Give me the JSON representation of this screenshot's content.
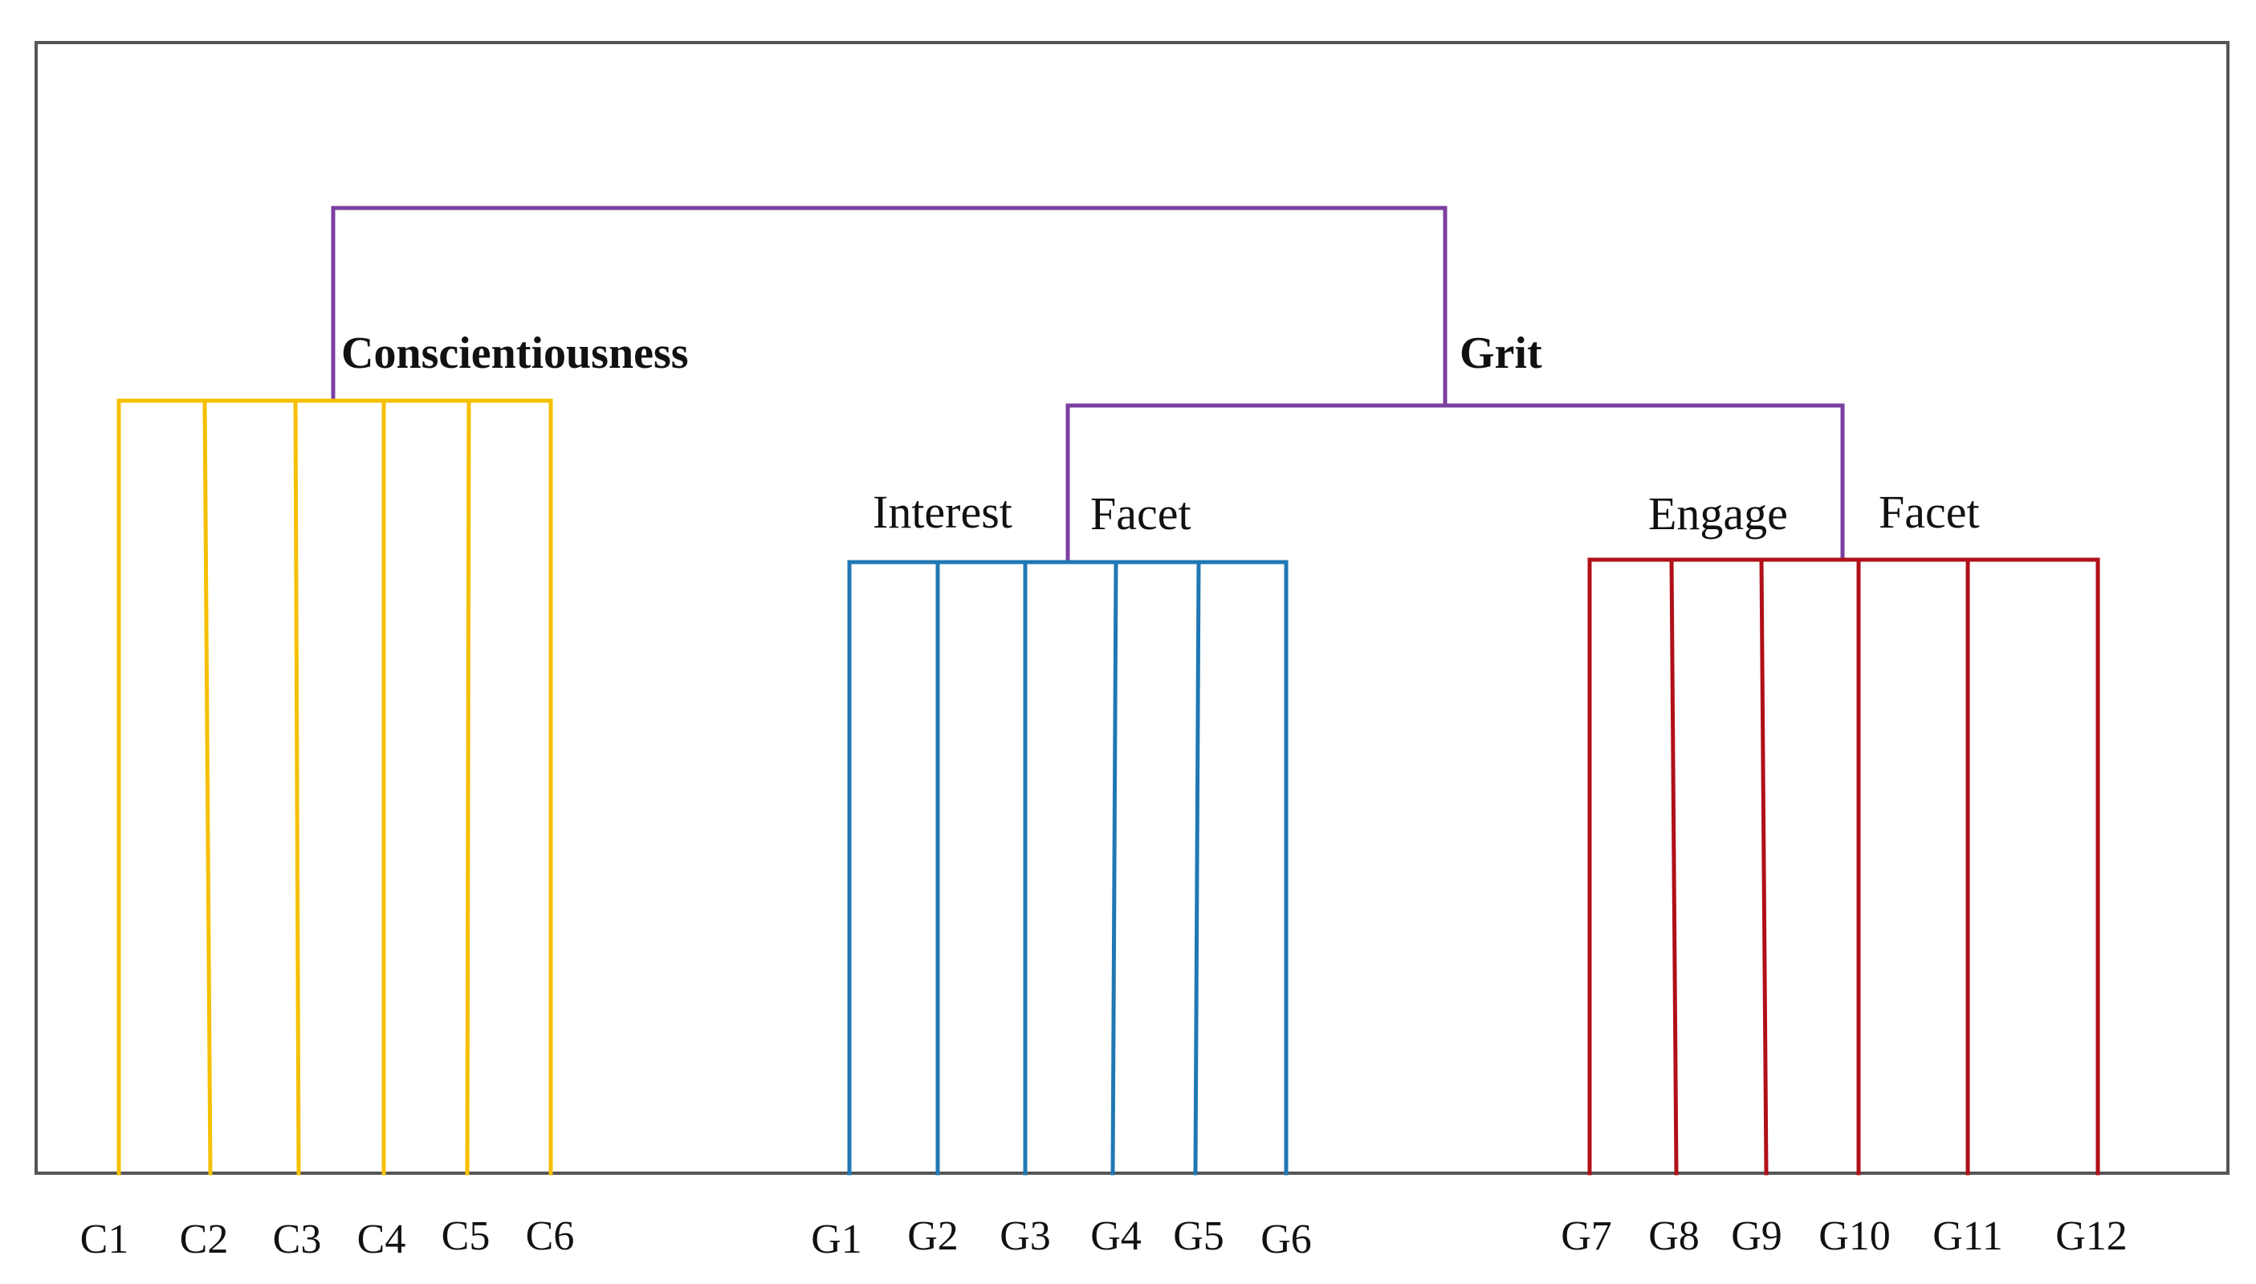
{
  "colors": {
    "conscientiousness": "#f5c000",
    "interest": "#1f78b4",
    "engage": "#b01018",
    "top": "#7b3fa0",
    "frame": "#555555"
  },
  "labels": {
    "conscientiousness": "Conscientiousness",
    "grit": "Grit",
    "interest": "Interest",
    "interest_facet": "Facet",
    "engage": "Engage",
    "engage_facet": "Facet"
  },
  "clusters": {
    "conscientiousness": {
      "items": [
        "C1",
        "C2",
        "C3",
        "C4",
        "C5",
        "C6"
      ]
    },
    "interest": {
      "items": [
        "G1",
        "G2",
        "G3",
        "G4",
        "G5",
        "G6"
      ]
    },
    "engage": {
      "items": [
        "G7",
        "G8",
        "G9",
        "G10",
        "G11",
        "G12"
      ]
    }
  }
}
